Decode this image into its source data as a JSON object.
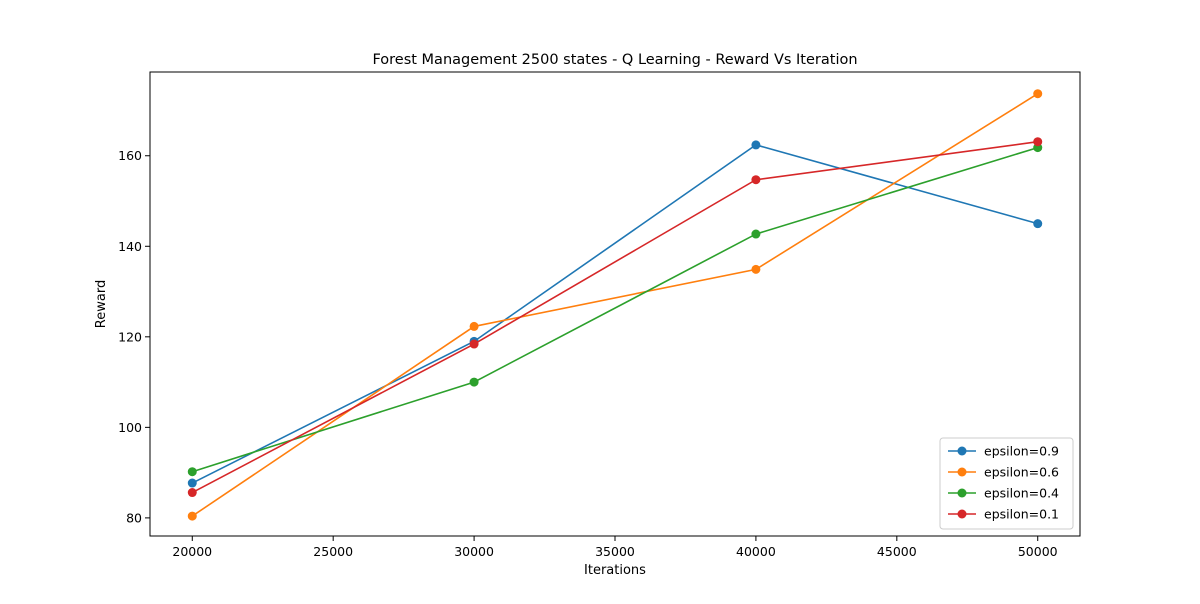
{
  "chart_data": {
    "type": "line",
    "title": "Forest Management 2500 states - Q Learning - Reward Vs Iteration",
    "xlabel": "Iterations",
    "ylabel": "Reward",
    "x": [
      20000,
      30000,
      40000,
      50000
    ],
    "xlim": [
      18500,
      51500
    ],
    "ylim": [
      76,
      178.5
    ],
    "xticks": [
      20000,
      25000,
      30000,
      35000,
      40000,
      45000,
      50000
    ],
    "yticks": [
      80,
      100,
      120,
      140,
      160
    ],
    "grid": false,
    "legend_position": "lower right",
    "series": [
      {
        "name": "epsilon=0.9",
        "color": "#1f77b4",
        "values": [
          87.7,
          119.0,
          162.4,
          145.0
        ]
      },
      {
        "name": "epsilon=0.6",
        "color": "#ff7f0e",
        "values": [
          80.4,
          122.3,
          134.9,
          173.7
        ]
      },
      {
        "name": "epsilon=0.4",
        "color": "#2ca02c",
        "values": [
          90.2,
          110.0,
          142.7,
          161.8
        ]
      },
      {
        "name": "epsilon=0.1",
        "color": "#d62728",
        "values": [
          85.6,
          118.4,
          154.7,
          163.1
        ]
      }
    ]
  }
}
